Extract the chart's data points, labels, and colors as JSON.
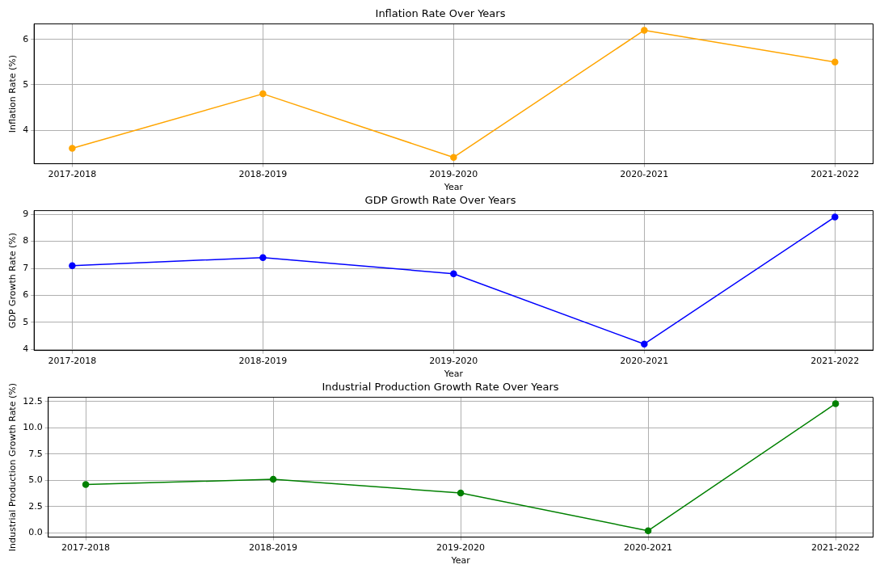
{
  "chart_data": [
    {
      "type": "line",
      "title": "Inflation Rate Over Years",
      "xlabel": "Year",
      "ylabel": "Inflation Rate (%)",
      "categories": [
        "2017-2018",
        "2018-2019",
        "2019-2020",
        "2020-2021",
        "2021-2022"
      ],
      "series": [
        {
          "color": "#ffa500",
          "values": [
            3.6,
            4.8,
            3.4,
            6.2,
            5.5
          ]
        }
      ],
      "ylim": [
        3.26,
        6.34
      ],
      "yticks": [
        4,
        5,
        6
      ],
      "grid": true,
      "marker": "circle"
    },
    {
      "type": "line",
      "title": "GDP Growth Rate Over Years",
      "xlabel": "Year",
      "ylabel": "GDP Growth Rate (%)",
      "categories": [
        "2017-2018",
        "2018-2019",
        "2019-2020",
        "2020-2021",
        "2021-2022"
      ],
      "series": [
        {
          "color": "#0000ff",
          "values": [
            7.1,
            7.4,
            6.8,
            4.2,
            8.9
          ]
        }
      ],
      "ylim": [
        3.965,
        9.135
      ],
      "yticks": [
        4,
        5,
        6,
        7,
        8,
        9
      ],
      "grid": true,
      "marker": "circle"
    },
    {
      "type": "line",
      "title": "Industrial Production Growth Rate Over Years",
      "xlabel": "Year",
      "ylabel": "Industrial Production Growth Rate (%)",
      "categories": [
        "2017-2018",
        "2018-2019",
        "2019-2020",
        "2020-2021",
        "2021-2022"
      ],
      "series": [
        {
          "color": "#008000",
          "values": [
            4.6,
            5.1,
            3.8,
            0.2,
            12.3
          ]
        }
      ],
      "ylim": [
        -0.405,
        12.905
      ],
      "yticks": [
        {
          "value": 0,
          "label": "0.0"
        },
        {
          "value": 2.5,
          "label": "2.5"
        },
        {
          "value": 5,
          "label": "5.0"
        },
        {
          "value": 7.5,
          "label": "7.5"
        },
        {
          "value": 10,
          "label": "10.0"
        },
        {
          "value": 12.5,
          "label": "12.5"
        }
      ],
      "grid": true,
      "marker": "circle"
    }
  ]
}
